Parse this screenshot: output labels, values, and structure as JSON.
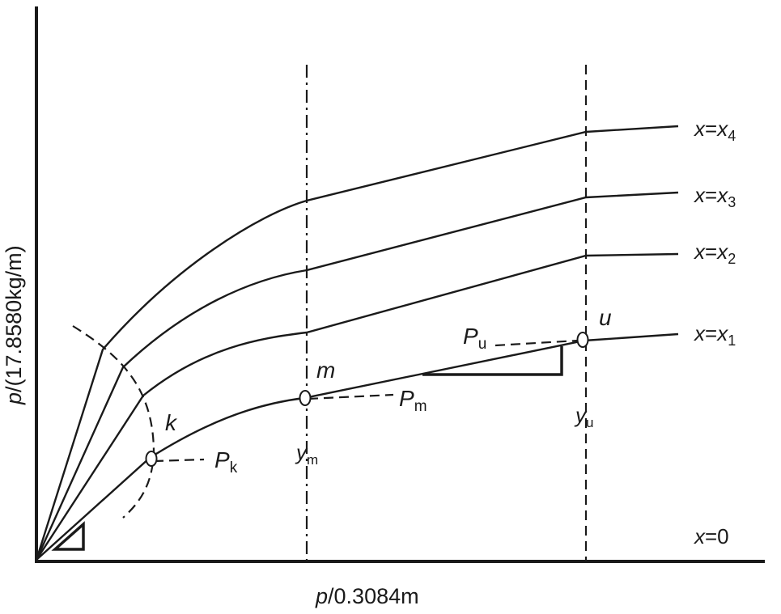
{
  "axes": {
    "x_label": {
      "var": "p",
      "rest": "/0.3084m"
    },
    "y_label": {
      "var": "p",
      "rest": "/(17.8580kg/m)"
    }
  },
  "curves": [
    {
      "var": "x",
      "eq": "=",
      "sub_var": "x",
      "sub": "4"
    },
    {
      "var": "x",
      "eq": "=",
      "sub_var": "x",
      "sub": "3"
    },
    {
      "var": "x",
      "eq": "=",
      "sub_var": "x",
      "sub": "2"
    },
    {
      "var": "x",
      "eq": "=",
      "sub_var": "x",
      "sub": "1"
    }
  ],
  "baseline_label": {
    "var": "x",
    "rest": "=0"
  },
  "points": {
    "k": {
      "name": "k",
      "force": "P",
      "force_sub": "k"
    },
    "m": {
      "name": "m",
      "force": "P",
      "force_sub": "m"
    },
    "u": {
      "name": "u",
      "force": "P",
      "force_sub": "u"
    }
  },
  "vertical_lines": {
    "ym": {
      "var": "y",
      "sub": "m"
    },
    "yu": {
      "var": "y",
      "sub": "u"
    }
  }
}
